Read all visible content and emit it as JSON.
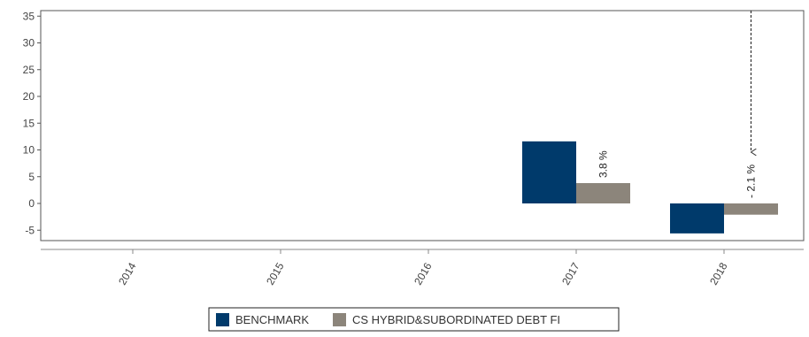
{
  "chart_data": {
    "type": "bar",
    "categories": [
      "2014",
      "2015",
      "2016",
      "2017",
      "2018"
    ],
    "series": [
      {
        "name": "BENCHMARK",
        "color": "#003a6b",
        "values": [
          null,
          null,
          null,
          11.6,
          -5.6
        ]
      },
      {
        "name": "CS HYBRID&SUBORDINATED DEBT FI",
        "color": "#8c857b",
        "values": [
          null,
          null,
          null,
          3.8,
          -2.1
        ],
        "labels": [
          null,
          null,
          null,
          "3.8 %",
          "- 2.1 %"
        ]
      }
    ],
    "ylim": [
      -7,
      36
    ],
    "yticks": [
      35,
      30,
      25,
      20,
      15,
      10,
      5,
      0,
      -5
    ],
    "annotation": {
      "category": "2018",
      "label": "- 2.1 %",
      "arrow": "dashed vertical arrow pointing down to label"
    },
    "legend_position": "bottom-center",
    "grid": false
  }
}
